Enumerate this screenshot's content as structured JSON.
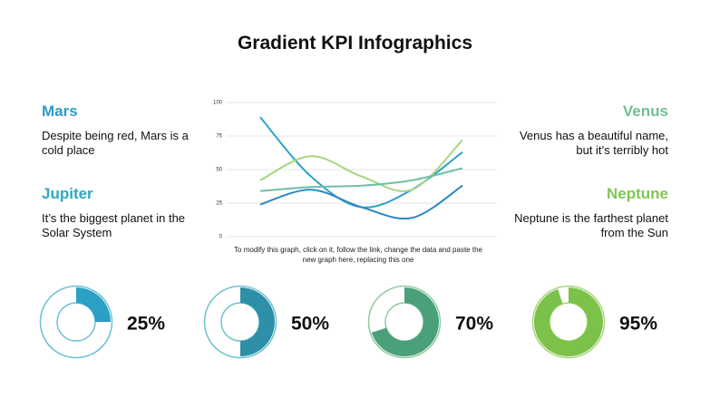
{
  "title": "Gradient KPI Infographics",
  "panels": [
    {
      "heading": "Mars",
      "text": "Despite being red, Mars is a cold place",
      "color": "#2e9cc4"
    },
    {
      "heading": "Jupiter",
      "text": "It’s the biggest planet in the Solar System",
      "color": "#2fa8bf"
    },
    {
      "heading": "Venus",
      "text": "Venus has a beautiful name, but it’s terribly hot",
      "color": "#6fbf92"
    },
    {
      "heading": "Neptune",
      "text": "Neptune is the farthest planet from the Sun",
      "color": "#80c653"
    }
  ],
  "chart_data": [
    {
      "type": "line",
      "annotation": "To modify this graph, click on it, follow the link, change the data and paste the new graph here, replacing this one",
      "categories": [
        null,
        null,
        null,
        null,
        null
      ],
      "series": [
        {
          "color": "#2ea3c8",
          "values": [
            89,
            45,
            22,
            35,
            63
          ]
        },
        {
          "color": "#2f86c4",
          "values": [
            24,
            35,
            22,
            14,
            38
          ]
        },
        {
          "color": "#a6d67e",
          "values": [
            42,
            60,
            45,
            35,
            72
          ]
        },
        {
          "color": "#6dc0a6",
          "values": [
            34,
            37,
            38,
            42,
            51
          ]
        }
      ],
      "ylim": [
        0,
        100
      ],
      "yticks": [
        0,
        25,
        50,
        75,
        100
      ],
      "grid": true
    },
    {
      "type": "donut",
      "values": [
        25
      ],
      "value_labels": [
        "25%"
      ],
      "color": "#2b9fc4",
      "track": "#6cc0d6"
    },
    {
      "type": "donut",
      "values": [
        50
      ],
      "value_labels": [
        "50%"
      ],
      "color": "#2e8fa8",
      "track": "#6ec2cc"
    },
    {
      "type": "donut",
      "values": [
        70
      ],
      "value_labels": [
        "70%"
      ],
      "color": "#4aa07a",
      "track": "#8fcca0"
    },
    {
      "type": "donut",
      "values": [
        95
      ],
      "value_labels": [
        "95%"
      ],
      "color": "#7cc24a",
      "track": "#a8d67e"
    }
  ]
}
